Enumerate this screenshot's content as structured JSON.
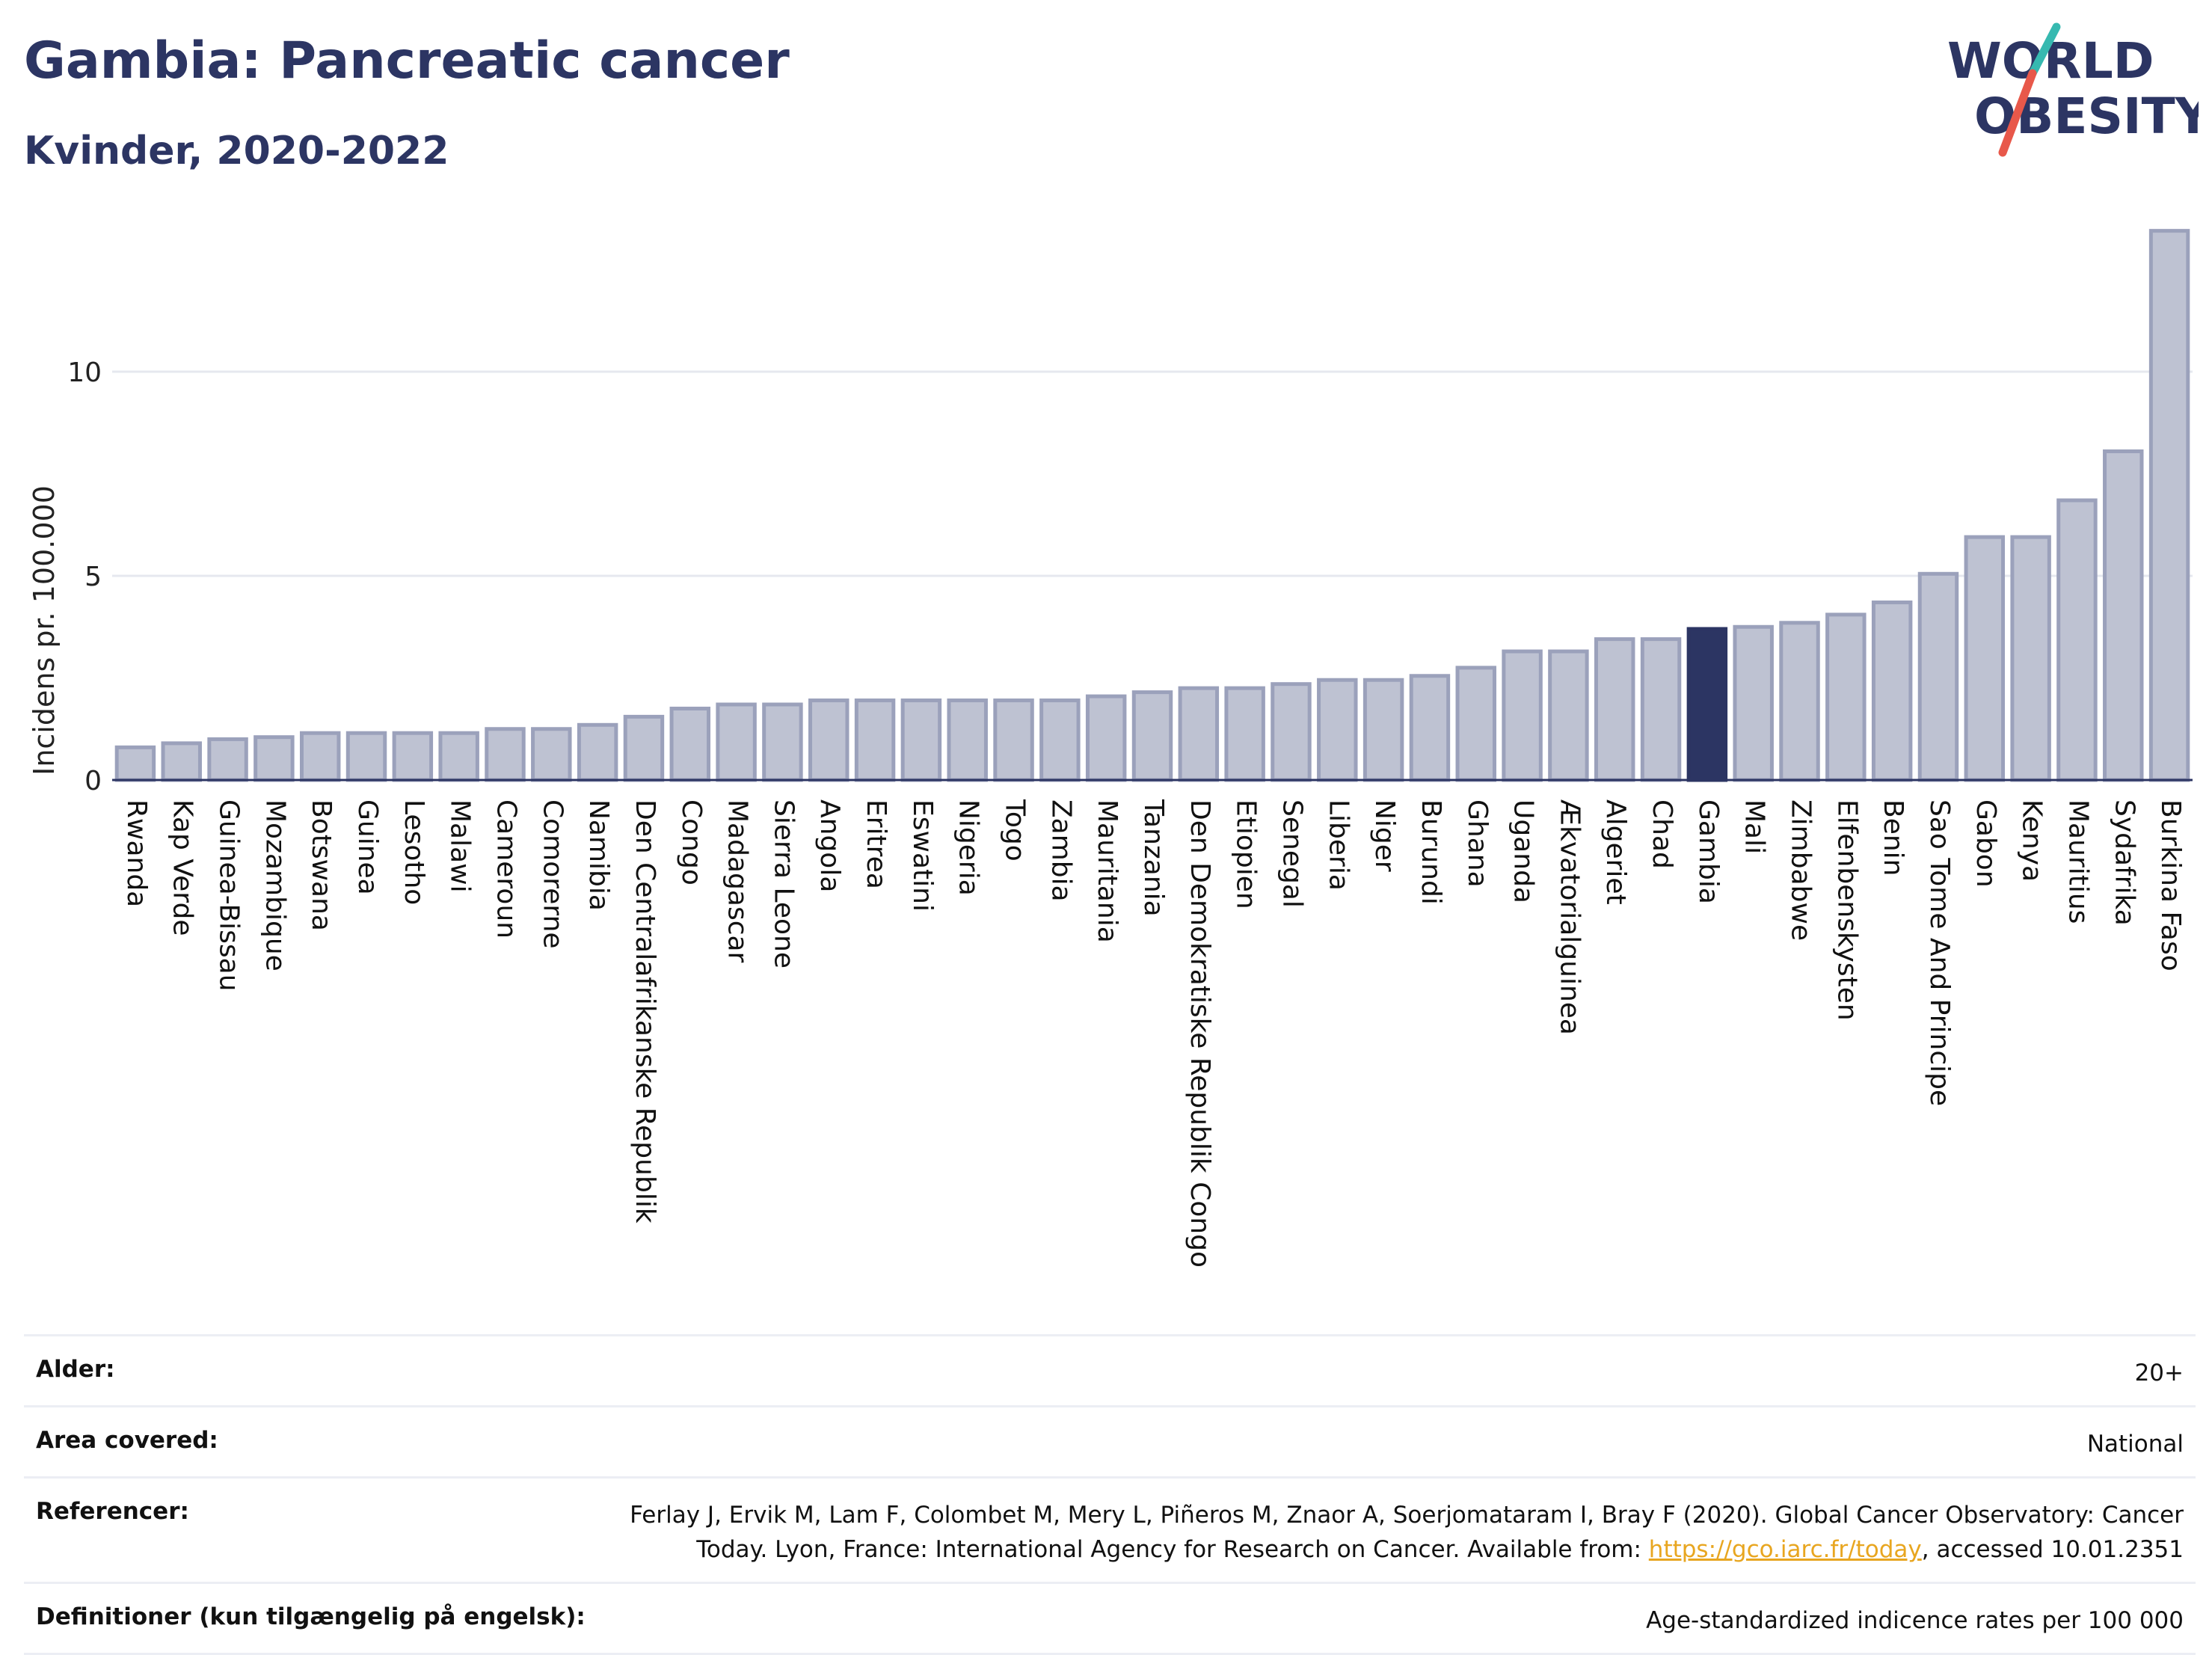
{
  "header": {
    "title": "Gambia: Pancreatic cancer",
    "subtitle": "Kvinder, 2020-2022"
  },
  "logo": {
    "line1": "WORLD",
    "line2": "OBESITY"
  },
  "colors": {
    "bar": "#bec2d2",
    "bar_stroke": "#9ba1bb",
    "highlight": "#2c3563",
    "text": "#2c3563",
    "grid": "#e6e8ef",
    "link": "#e8a620",
    "logo_red": "#e8584a",
    "logo_teal": "#36b9b0"
  },
  "chart_data": {
    "type": "bar",
    "title": "Gambia: Pancreatic cancer",
    "subtitle": "Kvinder, 2020-2022",
    "xlabel": "",
    "ylabel": "Incidens pr. 100.000",
    "ylim": [
      0,
      13.5
    ],
    "yticks": [
      0,
      5,
      10
    ],
    "grid": true,
    "highlight": "Gambia",
    "categories": [
      "Rwanda",
      "Kap Verde",
      "Guinea-Bissau",
      "Mozambique",
      "Botswana",
      "Guinea",
      "Lesotho",
      "Malawi",
      "Cameroun",
      "Comorerne",
      "Namibia",
      "Den Centralafrikanske Republik",
      "Congo",
      "Madagascar",
      "Sierra Leone",
      "Angola",
      "Eritrea",
      "Eswatini",
      "Nigeria",
      "Togo",
      "Zambia",
      "Mauritania",
      "Tanzania",
      "Den Demokratiske Republik Congo",
      "Etiopien",
      "Senegal",
      "Liberia",
      "Niger",
      "Burundi",
      "Ghana",
      "Uganda",
      "Ækvatorialguinea",
      "Algeriet",
      "Chad",
      "Gambia",
      "Mali",
      "Zimbabwe",
      "Elfenbenskysten",
      "Benin",
      "Sao Tome And Principe",
      "Gabon",
      "Kenya",
      "Mauritius",
      "Sydafrika",
      "Burkina Faso"
    ],
    "values": [
      0.8,
      0.9,
      1.0,
      1.05,
      1.15,
      1.15,
      1.15,
      1.15,
      1.25,
      1.25,
      1.35,
      1.55,
      1.75,
      1.85,
      1.85,
      1.95,
      1.95,
      1.95,
      1.95,
      1.95,
      1.95,
      2.05,
      2.15,
      2.25,
      2.25,
      2.35,
      2.45,
      2.45,
      2.55,
      2.75,
      3.15,
      3.15,
      3.45,
      3.45,
      3.7,
      3.75,
      3.85,
      4.05,
      4.35,
      5.05,
      5.95,
      5.95,
      6.85,
      8.05,
      13.45
    ]
  },
  "meta": {
    "age_label": "Alder:",
    "age_value": "20+",
    "area_label": "Area covered:",
    "area_value": "National",
    "ref_label": "Referencer:",
    "ref_text_1": "Ferlay J, Ervik M, Lam F, Colombet M, Mery L, Piñeros M, Znaor A, Soerjomataram I, Bray F (2020). Global Cancer Observatory: Cancer Today. Lyon, France: International Agency for Research on Cancer. Available from: ",
    "ref_link": "https://gco.iarc.fr/today",
    "ref_text_2": ", accessed 10.01.2351",
    "def_label": "Definitioner (kun tilgængelig på engelsk):",
    "def_value": "Age-standardized indicence rates per 100 000"
  }
}
